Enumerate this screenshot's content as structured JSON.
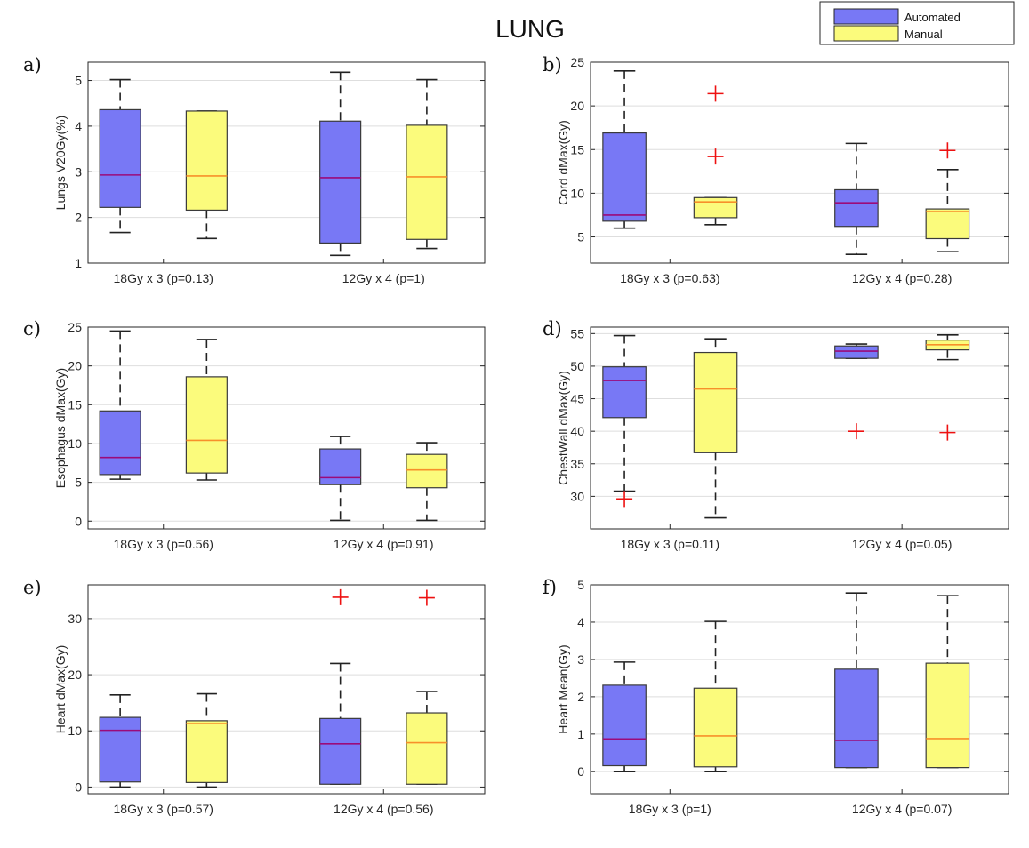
{
  "figure": {
    "title": "LUNG",
    "legend": [
      {
        "label": "Automated",
        "color": "#7878f5"
      },
      {
        "label": "Manual",
        "color": "#fbfb7c"
      }
    ]
  },
  "style": {
    "box_stroke": "#3a3a3a",
    "automated_median": "#9b0b7a",
    "manual_median": "#f7902a",
    "outlier": "#ee1111",
    "grid": "#dedede"
  },
  "chart_data": [
    {
      "type": "box",
      "panel": "a)",
      "title": "",
      "xlabel": "",
      "ylabel": "Lungs V20Gy(%)",
      "ylim": [
        1,
        5.4
      ],
      "yticks": [
        1,
        2,
        3,
        4,
        5
      ],
      "grid": true,
      "categories": [
        "18Gy x 3 (p=0.13)",
        "12Gy x 4 (p=1)"
      ],
      "series": [
        {
          "name": "Automated",
          "boxes": [
            {
              "whisker_low": 1.67,
              "q1": 2.22,
              "median": 2.93,
              "q3": 4.36,
              "whisker_high": 5.02,
              "outliers": []
            },
            {
              "whisker_low": 1.17,
              "q1": 1.44,
              "median": 2.87,
              "q3": 4.11,
              "whisker_high": 5.18,
              "outliers": []
            }
          ]
        },
        {
          "name": "Manual",
          "boxes": [
            {
              "whisker_low": 1.54,
              "q1": 2.16,
              "median": 2.91,
              "q3": 4.33,
              "whisker_high": 4.33,
              "outliers": []
            },
            {
              "whisker_low": 1.32,
              "q1": 1.52,
              "median": 2.89,
              "q3": 4.02,
              "whisker_high": 5.02,
              "outliers": []
            }
          ]
        }
      ]
    },
    {
      "type": "box",
      "panel": "b)",
      "title": "",
      "xlabel": "",
      "ylabel": "Cord dMax(Gy)",
      "ylim": [
        2,
        25
      ],
      "yticks": [
        5,
        10,
        15,
        20,
        25
      ],
      "grid": true,
      "categories": [
        "18Gy x 3 (p=0.63)",
        "12Gy x 4 (p=0.28)"
      ],
      "series": [
        {
          "name": "Automated",
          "boxes": [
            {
              "whisker_low": 6.0,
              "q1": 6.8,
              "median": 7.5,
              "q3": 16.9,
              "whisker_high": 24.0,
              "outliers": []
            },
            {
              "whisker_low": 3.0,
              "q1": 6.2,
              "median": 8.9,
              "q3": 10.4,
              "whisker_high": 15.7,
              "outliers": []
            }
          ]
        },
        {
          "name": "Manual",
          "boxes": [
            {
              "whisker_low": 6.4,
              "q1": 7.2,
              "median": 9.0,
              "q3": 9.5,
              "whisker_high": 9.5,
              "outliers": [
                21.4,
                14.2
              ]
            },
            {
              "whisker_low": 3.3,
              "q1": 4.8,
              "median": 7.9,
              "q3": 8.2,
              "whisker_high": 12.7,
              "outliers": [
                14.9
              ]
            }
          ]
        }
      ]
    },
    {
      "type": "box",
      "panel": "c)",
      "title": "",
      "xlabel": "",
      "ylabel": "Esophagus dMax(Gy)",
      "ylim": [
        -1,
        25
      ],
      "yticks": [
        0,
        5,
        10,
        15,
        20,
        25
      ],
      "grid": true,
      "categories": [
        "18Gy x 3 (p=0.56)",
        "12Gy x 4 (p=0.91)"
      ],
      "series": [
        {
          "name": "Automated",
          "boxes": [
            {
              "whisker_low": 5.4,
              "q1": 6.0,
              "median": 8.2,
              "q3": 14.2,
              "whisker_high": 24.5,
              "outliers": []
            },
            {
              "whisker_low": 0.1,
              "q1": 4.7,
              "median": 5.6,
              "q3": 9.3,
              "whisker_high": 10.9,
              "outliers": []
            }
          ]
        },
        {
          "name": "Manual",
          "boxes": [
            {
              "whisker_low": 5.3,
              "q1": 6.2,
              "median": 10.4,
              "q3": 18.6,
              "whisker_high": 23.4,
              "outliers": []
            },
            {
              "whisker_low": 0.1,
              "q1": 4.3,
              "median": 6.6,
              "q3": 8.6,
              "whisker_high": 10.1,
              "outliers": []
            }
          ]
        }
      ]
    },
    {
      "type": "box",
      "panel": "d)",
      "title": "",
      "xlabel": "",
      "ylabel": "ChestWall dMax(Gy)",
      "ylim": [
        25,
        56
      ],
      "yticks": [
        30,
        35,
        40,
        45,
        50,
        55
      ],
      "grid": true,
      "categories": [
        "18Gy x 3 (p=0.11)",
        "12Gy x 4 (p=0.05)"
      ],
      "series": [
        {
          "name": "Automated",
          "boxes": [
            {
              "whisker_low": 30.8,
              "q1": 42.1,
              "median": 47.8,
              "q3": 49.9,
              "whisker_high": 54.7,
              "outliers": [
                29.6
              ]
            },
            {
              "whisker_low": 51.2,
              "q1": 51.2,
              "median": 52.3,
              "q3": 53.1,
              "whisker_high": 53.4,
              "outliers": [
                40.0
              ]
            }
          ]
        },
        {
          "name": "Manual",
          "boxes": [
            {
              "whisker_low": 26.7,
              "q1": 36.7,
              "median": 46.5,
              "q3": 52.1,
              "whisker_high": 54.2,
              "outliers": []
            },
            {
              "whisker_low": 51.0,
              "q1": 52.5,
              "median": 53.3,
              "q3": 54.0,
              "whisker_high": 54.8,
              "outliers": [
                39.8
              ]
            }
          ]
        }
      ]
    },
    {
      "type": "box",
      "panel": "e)",
      "title": "",
      "xlabel": "",
      "ylabel": "Heart dMax(Gy)",
      "ylim": [
        -1.2,
        36
      ],
      "yticks": [
        0,
        10,
        20,
        30
      ],
      "grid": true,
      "categories": [
        "18Gy x 3 (p=0.57)",
        "12Gy x 4 (p=0.56)"
      ],
      "series": [
        {
          "name": "Automated",
          "boxes": [
            {
              "whisker_low": 0.0,
              "q1": 0.9,
              "median": 10.1,
              "q3": 12.4,
              "whisker_high": 16.4,
              "outliers": []
            },
            {
              "whisker_low": 0.5,
              "q1": 0.5,
              "median": 7.7,
              "q3": 12.2,
              "whisker_high": 22.0,
              "outliers": [
                33.8
              ]
            }
          ]
        },
        {
          "name": "Manual",
          "boxes": [
            {
              "whisker_low": 0.0,
              "q1": 0.8,
              "median": 11.3,
              "q3": 11.8,
              "whisker_high": 16.6,
              "outliers": []
            },
            {
              "whisker_low": 0.5,
              "q1": 0.5,
              "median": 7.9,
              "q3": 13.2,
              "whisker_high": 17.0,
              "outliers": [
                33.7
              ]
            }
          ]
        }
      ]
    },
    {
      "type": "box",
      "panel": "f)",
      "title": "",
      "xlabel": "",
      "ylabel": "Heart Mean(Gy)",
      "ylim": [
        -0.6,
        5
      ],
      "yticks": [
        0,
        1,
        2,
        3,
        4,
        5
      ],
      "grid": true,
      "categories": [
        "18Gy x 3 (p=1)",
        "12Gy x 4 (p=0.07)"
      ],
      "series": [
        {
          "name": "Automated",
          "boxes": [
            {
              "whisker_low": 0.0,
              "q1": 0.15,
              "median": 0.87,
              "q3": 2.31,
              "whisker_high": 2.93,
              "outliers": []
            },
            {
              "whisker_low": 0.1,
              "q1": 0.1,
              "median": 0.83,
              "q3": 2.74,
              "whisker_high": 4.78,
              "outliers": []
            }
          ]
        },
        {
          "name": "Manual",
          "boxes": [
            {
              "whisker_low": 0.0,
              "q1": 0.12,
              "median": 0.95,
              "q3": 2.23,
              "whisker_high": 4.02,
              "outliers": []
            },
            {
              "whisker_low": 0.1,
              "q1": 0.1,
              "median": 0.88,
              "q3": 2.9,
              "whisker_high": 4.71,
              "outliers": []
            }
          ]
        }
      ]
    }
  ]
}
